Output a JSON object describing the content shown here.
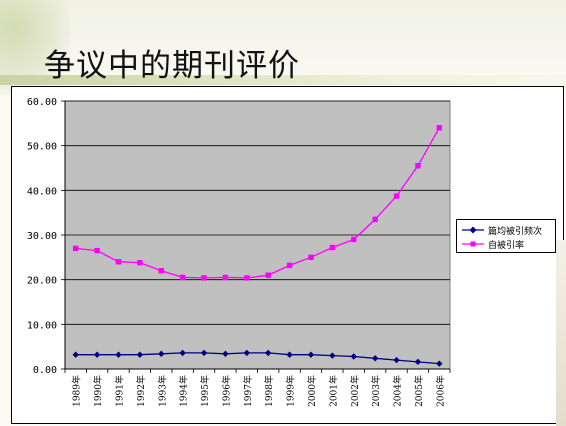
{
  "slide": {
    "title": "争议中的期刊评价"
  },
  "colors": {
    "plot_background": "#c0c0c0",
    "series_citations_color": "#000080",
    "series_self_citation_color": "#ff00ff",
    "title_band": "#d6dcb8"
  },
  "chart_data": {
    "type": "line",
    "title": "",
    "xlabel": "",
    "ylabel": "",
    "ylim": [
      0,
      60
    ],
    "yticks": [
      "0.00",
      "10.00",
      "20.00",
      "30.00",
      "40.00",
      "50.00",
      "60.00"
    ],
    "grid": "horizontal",
    "legend_position": "right",
    "categories": [
      "1989年",
      "1990年",
      "1991年",
      "1992年",
      "1993年",
      "1994年",
      "1995年",
      "1996年",
      "1997年",
      "1998年",
      "1999年",
      "2000年",
      "2001年",
      "2002年",
      "2003年",
      "2004年",
      "2005年",
      "2006年"
    ],
    "series": [
      {
        "name": "篇均被引频次",
        "marker": "diamond",
        "values": [
          3.2,
          3.2,
          3.2,
          3.2,
          3.4,
          3.6,
          3.6,
          3.4,
          3.6,
          3.6,
          3.2,
          3.2,
          3.0,
          2.8,
          2.4,
          2.0,
          1.6,
          1.2
        ]
      },
      {
        "name": "自被引率",
        "marker": "square",
        "values": [
          27.0,
          26.5,
          24.0,
          23.8,
          22.0,
          20.5,
          20.4,
          20.5,
          20.4,
          21.0,
          23.2,
          25.0,
          27.2,
          29.0,
          33.5,
          38.7,
          45.5,
          54.0
        ]
      }
    ]
  }
}
